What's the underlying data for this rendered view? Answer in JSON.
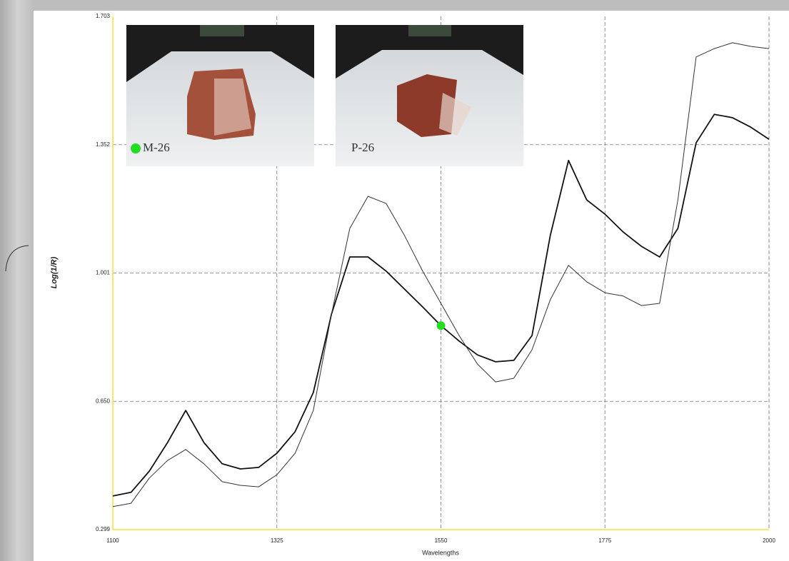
{
  "chart_data": {
    "type": "line",
    "x_label": "Wavelengths",
    "y_label": "Log(1/R)",
    "annotations": [
      "M-26",
      "P-26"
    ],
    "x": [
      1100,
      1125,
      1150,
      1175,
      1200,
      1225,
      1250,
      1275,
      1300,
      1325,
      1350,
      1375,
      1400,
      1425,
      1450,
      1475,
      1500,
      1525,
      1550,
      1575,
      1600,
      1625,
      1650,
      1675,
      1700,
      1725,
      1750,
      1775,
      1800,
      1825,
      1850,
      1875,
      1900,
      1925,
      1950,
      1975,
      2000
    ],
    "series": [
      {
        "color": "#111111",
        "line_width": 1.8,
        "values": [
          0.391,
          0.401,
          0.459,
          0.537,
          0.625,
          0.537,
          0.479,
          0.465,
          0.469,
          0.508,
          0.567,
          0.674,
          0.889,
          1.045,
          1.045,
          1.006,
          0.957,
          0.908,
          0.857,
          0.815,
          0.777,
          0.758,
          0.762,
          0.83,
          1.104,
          1.309,
          1.201,
          1.162,
          1.113,
          1.074,
          1.045,
          1.123,
          1.357,
          1.435,
          1.426,
          1.4,
          1.367
        ]
      },
      {
        "color": "#333333",
        "line_width": 1,
        "values": [
          0.362,
          0.371,
          0.44,
          0.488,
          0.518,
          0.479,
          0.43,
          0.42,
          0.416,
          0.449,
          0.508,
          0.625,
          0.889,
          1.123,
          1.211,
          1.191,
          1.104,
          1.006,
          0.918,
          0.83,
          0.752,
          0.703,
          0.713,
          0.791,
          0.928,
          1.022,
          0.977,
          0.947,
          0.938,
          0.912,
          0.918,
          1.201,
          1.592,
          1.615,
          1.631,
          1.621,
          1.615
        ]
      }
    ],
    "marker": {
      "x": 1550,
      "y": 0.857,
      "color": "#22dd22"
    },
    "xlim": [
      1100,
      2000
    ],
    "xticks": [
      1100,
      1325,
      1550,
      1775,
      2000
    ],
    "ylim": [
      0.299,
      1.703
    ],
    "yticks": [
      0.299,
      {
        "value": 0.65,
        "label": "0.650"
      },
      1.001,
      1.352,
      1.703
    ],
    "grid": true,
    "axis_color": "#f2e23a",
    "grid_color": "#777777"
  }
}
